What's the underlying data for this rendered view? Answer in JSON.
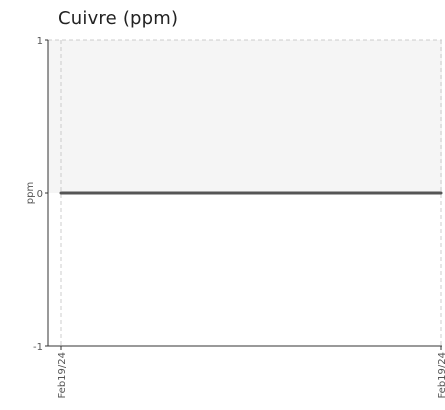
{
  "chart_data": {
    "type": "line",
    "title": "Cuivre (ppm)",
    "ylabel": "ppm",
    "xlabel": "",
    "ylim": [
      -1,
      1
    ],
    "yticks": [
      "1",
      "0",
      "-1"
    ],
    "x": [
      "Feb19/24",
      "Feb19/24"
    ],
    "series": [
      {
        "values": [
          0,
          0
        ]
      }
    ],
    "shaded_band": [
      0,
      1
    ],
    "colors": {
      "line": "#555555",
      "band": "#f5f5f5",
      "axis": "#333333",
      "grid": "#cccccc"
    }
  }
}
